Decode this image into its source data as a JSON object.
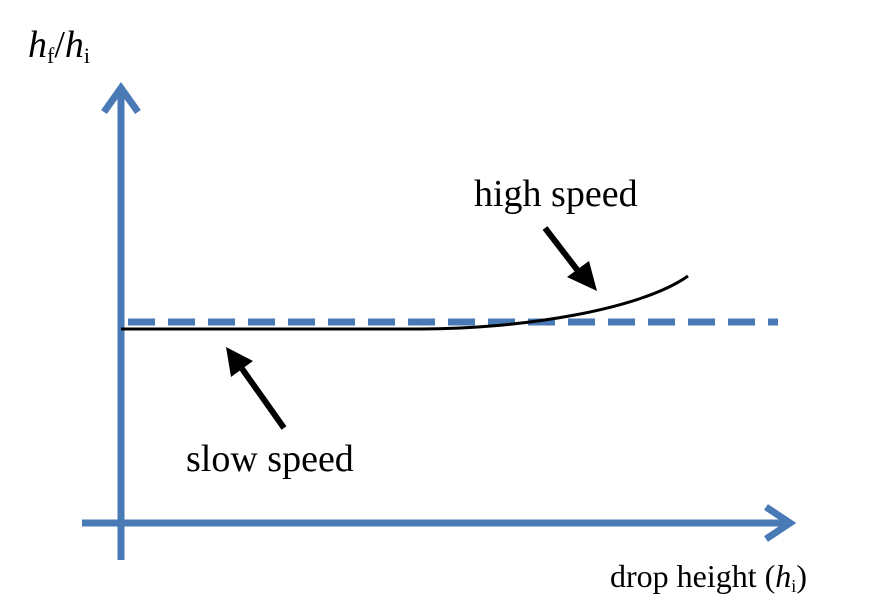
{
  "y_axis_label": {
    "var": "h",
    "sub_f": "f",
    "slash": "/",
    "var2": "h",
    "sub_i": "i"
  },
  "x_axis_label": {
    "text": "drop height (",
    "var": "h",
    "sub": "i",
    "close": ")"
  },
  "annotations": {
    "high": "high speed",
    "slow": "slow speed"
  },
  "colors": {
    "axis": "#4a7ab5",
    "curve": "#000000",
    "reference_line": "#4a7ab5"
  }
}
